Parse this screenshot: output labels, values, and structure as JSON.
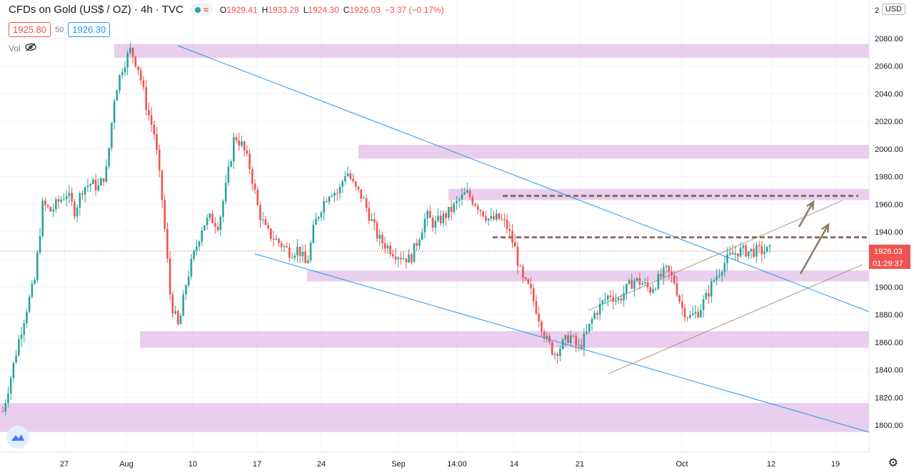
{
  "header": {
    "symbol": "CFDs on Gold (US$ / OZ) · 4h · TVC",
    "ohlc": {
      "o_label": "O",
      "o": "1929.41",
      "h_label": "H",
      "h": "1933.28",
      "l_label": "L",
      "l": "1924.30",
      "c_label": "C",
      "c": "1926.03",
      "change": "−3.37 (−0.17%)"
    },
    "bid": "1925.80",
    "spread": "50",
    "ask": "1926.30",
    "vol_label": "Vol",
    "currency": "USD"
  },
  "chart_data": {
    "type": "candlestick",
    "title": "CFDs on Gold (US$ / OZ)",
    "interval": "4h",
    "y_ticks": [
      "1800.00",
      "1820.00",
      "1840.00",
      "1860.00",
      "1880.00",
      "1900.00",
      "1920.00",
      "1940.00",
      "1960.00",
      "1980.00",
      "2000.00",
      "2020.00",
      "2040.00",
      "2060.00",
      "2080.00"
    ],
    "y_top_partial_label": "2",
    "x_ticks": [
      "27",
      "Aug",
      "10",
      "17",
      "24",
      "Sep",
      "14:00",
      "14",
      "21",
      "Oct",
      "12",
      "19"
    ],
    "ylim": [
      1788,
      2100
    ],
    "last_price": "1926.03",
    "countdown": "01:29:37",
    "price_path": [
      [
        0,
        1810
      ],
      [
        3,
        1835
      ],
      [
        5,
        1862
      ],
      [
        7,
        1885
      ],
      [
        8,
        1905
      ],
      [
        9,
        1960
      ],
      [
        10,
        1955
      ],
      [
        11,
        1962
      ],
      [
        12,
        1968
      ],
      [
        13,
        1955
      ],
      [
        14,
        1972
      ],
      [
        15,
        1975
      ],
      [
        16,
        1972
      ],
      [
        17,
        1985
      ],
      [
        18,
        2040
      ],
      [
        19,
        2060
      ],
      [
        20,
        2072
      ],
      [
        21,
        2058
      ],
      [
        22,
        2030
      ],
      [
        23,
        2010
      ],
      [
        24,
        1960
      ],
      [
        25,
        1890
      ],
      [
        26,
        1870
      ],
      [
        27,
        1905
      ],
      [
        28,
        1925
      ],
      [
        29,
        1945
      ],
      [
        30,
        1950
      ],
      [
        31,
        1945
      ],
      [
        32,
        1975
      ],
      [
        33,
        2010
      ],
      [
        34,
        2002
      ],
      [
        35,
        1985
      ],
      [
        36,
        1955
      ],
      [
        37,
        1940
      ],
      [
        38,
        1935
      ],
      [
        39,
        1930
      ],
      [
        40,
        1925
      ],
      [
        41,
        1928
      ],
      [
        42,
        1915
      ],
      [
        43,
        1945
      ],
      [
        44,
        1960
      ],
      [
        45,
        1970
      ],
      [
        46,
        1968
      ],
      [
        47,
        1985
      ],
      [
        48,
        1972
      ],
      [
        49,
        1965
      ],
      [
        50,
        1950
      ],
      [
        51,
        1935
      ],
      [
        52,
        1930
      ],
      [
        53,
        1925
      ],
      [
        54,
        1922
      ],
      [
        55,
        1920
      ],
      [
        56,
        1935
      ],
      [
        57,
        1952
      ],
      [
        58,
        1945
      ],
      [
        59,
        1950
      ],
      [
        60,
        1955
      ],
      [
        61,
        1962
      ],
      [
        62,
        1968
      ],
      [
        63,
        1962
      ],
      [
        64,
        1955
      ],
      [
        65,
        1948
      ],
      [
        66,
        1950
      ],
      [
        67,
        1945
      ],
      [
        68,
        1930
      ],
      [
        69,
        1905
      ],
      [
        70,
        1898
      ],
      [
        71,
        1880
      ],
      [
        72,
        1862
      ],
      [
        73,
        1852
      ],
      [
        74,
        1858
      ],
      [
        75,
        1865
      ],
      [
        76,
        1855
      ],
      [
        77,
        1865
      ],
      [
        78,
        1880
      ],
      [
        79,
        1888
      ],
      [
        80,
        1895
      ],
      [
        81,
        1890
      ],
      [
        82,
        1898
      ],
      [
        83,
        1905
      ],
      [
        84,
        1903
      ],
      [
        85,
        1898
      ],
      [
        86,
        1905
      ],
      [
        87,
        1912
      ],
      [
        88,
        1905
      ],
      [
        89,
        1885
      ],
      [
        90,
        1878
      ],
      [
        91,
        1882
      ],
      [
        92,
        1892
      ],
      [
        93,
        1905
      ],
      [
        94,
        1915
      ],
      [
        95,
        1922
      ],
      [
        96,
        1926
      ]
    ],
    "zones": [
      [
        2066,
        2076
      ],
      [
        1993,
        2003
      ],
      [
        1963,
        1971
      ],
      [
        1904,
        1912
      ],
      [
        1856,
        1868
      ],
      [
        1795,
        1816
      ]
    ],
    "dashed_levels": [
      1966,
      1936
    ]
  }
}
